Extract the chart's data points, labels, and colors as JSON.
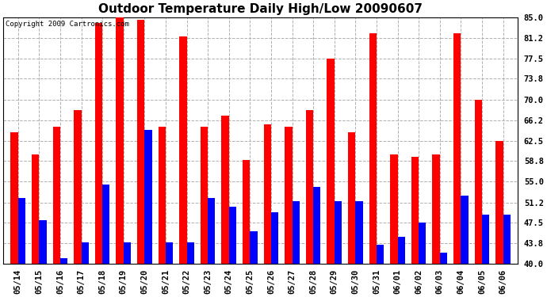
{
  "title": "Outdoor Temperature Daily High/Low 20090607",
  "copyright": "Copyright 2009 Cartronics.com",
  "dates": [
    "05/14",
    "05/15",
    "05/16",
    "05/17",
    "05/18",
    "05/19",
    "05/20",
    "05/21",
    "05/22",
    "05/23",
    "05/24",
    "05/25",
    "05/26",
    "05/27",
    "05/28",
    "05/29",
    "05/30",
    "05/31",
    "06/01",
    "06/02",
    "06/03",
    "06/04",
    "06/05",
    "06/06"
  ],
  "highs": [
    64.0,
    60.0,
    65.0,
    68.0,
    84.0,
    85.0,
    84.5,
    65.0,
    81.5,
    65.0,
    67.0,
    59.0,
    65.5,
    65.0,
    68.0,
    77.5,
    64.0,
    82.0,
    60.0,
    59.5,
    60.0,
    82.0,
    70.0,
    62.5
  ],
  "lows": [
    52.0,
    48.0,
    41.0,
    44.0,
    54.5,
    44.0,
    64.5,
    44.0,
    44.0,
    52.0,
    50.5,
    46.0,
    49.5,
    51.5,
    54.0,
    51.5,
    51.5,
    43.5,
    45.0,
    47.5,
    42.0,
    52.5,
    49.0,
    49.0
  ],
  "high_color": "#ff0000",
  "low_color": "#0000ff",
  "bg_color": "#ffffff",
  "plot_bg_color": "#ffffff",
  "grid_color": "#b0b0b0",
  "yticks": [
    40.0,
    43.8,
    47.5,
    51.2,
    55.0,
    58.8,
    62.5,
    66.2,
    70.0,
    73.8,
    77.5,
    81.2,
    85.0
  ],
  "ymin": 40.0,
  "ymax": 85.0,
  "title_fontsize": 11,
  "tick_fontsize": 7.5,
  "copyright_fontsize": 6.5
}
